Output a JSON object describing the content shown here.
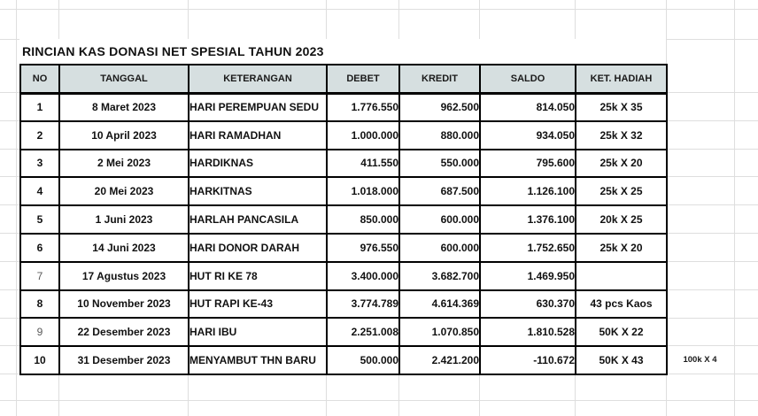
{
  "sheet": {
    "title": "RINCIAN KAS DONASI NET SPESIAL TAHUN 2023",
    "table": {
      "columns": [
        "NO",
        "TANGGAL",
        "KETERANGAN",
        "DEBET",
        "KREDIT",
        "SALDO",
        "KET. HADIAH"
      ],
      "rows": [
        {
          "no": "1",
          "tanggal": "8 Maret 2023",
          "keterangan": "HARI PEREMPUAN SEDU",
          "debet": "1.776.550",
          "kredit": "962.500",
          "saldo": "814.050",
          "ket_hadiah": "25k X 35",
          "no_muted": false
        },
        {
          "no": "2",
          "tanggal": "10 April 2023",
          "keterangan": "HARI RAMADHAN",
          "debet": "1.000.000",
          "kredit": "880.000",
          "saldo": "934.050",
          "ket_hadiah": "25k X 32",
          "no_muted": false
        },
        {
          "no": "3",
          "tanggal": "2 Mei 2023",
          "keterangan": "HARDIKNAS",
          "debet": "411.550",
          "kredit": "550.000",
          "saldo": "795.600",
          "ket_hadiah": "25k X 20",
          "no_muted": false
        },
        {
          "no": "4",
          "tanggal": "20 Mei 2023",
          "keterangan": "HARKITNAS",
          "debet": "1.018.000",
          "kredit": "687.500",
          "saldo": "1.126.100",
          "ket_hadiah": "25k X 25",
          "no_muted": false
        },
        {
          "no": "5",
          "tanggal": "1 Juni 2023",
          "keterangan": "HARLAH PANCASILA",
          "debet": "850.000",
          "kredit": "600.000",
          "saldo": "1.376.100",
          "ket_hadiah": "20k X 25",
          "no_muted": false
        },
        {
          "no": "6",
          "tanggal": "14 Juni 2023",
          "keterangan": "HARI DONOR DARAH",
          "debet": "976.550",
          "kredit": "600.000",
          "saldo": "1.752.650",
          "ket_hadiah": "25k X 20",
          "no_muted": false
        },
        {
          "no": "7",
          "tanggal": "17 Agustus 2023",
          "keterangan": "HUT RI KE 78",
          "debet": "3.400.000",
          "kredit": "3.682.700",
          "saldo": "1.469.950",
          "ket_hadiah": "",
          "no_muted": true
        },
        {
          "no": "8",
          "tanggal": "10 November 2023",
          "keterangan": "HUT RAPI KE-43",
          "debet": "3.774.789",
          "kredit": "4.614.369",
          "saldo": "630.370",
          "ket_hadiah": "43 pcs Kaos",
          "no_muted": false
        },
        {
          "no": "9",
          "tanggal": "22 Desember 2023",
          "keterangan": "HARI IBU",
          "debet": "2.251.008",
          "kredit": "1.070.850",
          "saldo": "1.810.528",
          "ket_hadiah": "50K X 22",
          "no_muted": true
        },
        {
          "no": "10",
          "tanggal": "31 Desember 2023",
          "keterangan": "MENYAMBUT THN BARU",
          "debet": "500.000",
          "kredit": "2.421.200",
          "saldo": "-110.672",
          "ket_hadiah": "50K X 43",
          "no_muted": false
        }
      ]
    },
    "outside_note": "100k X 4",
    "colors": {
      "header_bg": "#d6dfe0",
      "grid_line": "#dedede",
      "border": "#000000",
      "muted_no": "#5a5a5a"
    }
  }
}
